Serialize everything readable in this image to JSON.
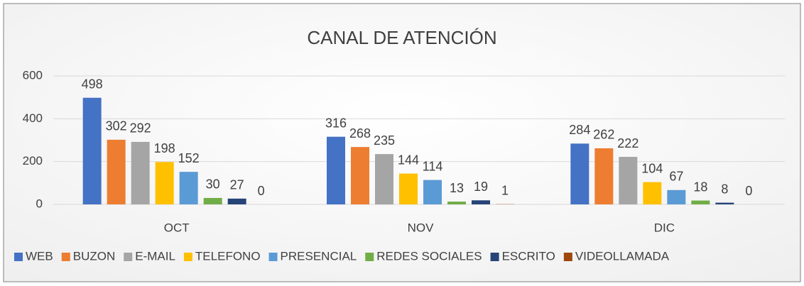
{
  "chart_data": {
    "type": "bar",
    "title": "CANAL DE ATENCIÓN",
    "categories": [
      "OCT",
      "NOV",
      "DIC"
    ],
    "series": [
      {
        "name": "WEB",
        "color": "#4472c4",
        "values": [
          498,
          316,
          284
        ]
      },
      {
        "name": "BUZON",
        "color": "#ed7d31",
        "values": [
          302,
          268,
          262
        ]
      },
      {
        "name": "E-MAIL",
        "color": "#a5a5a5",
        "values": [
          292,
          235,
          222
        ]
      },
      {
        "name": "TELEFONO",
        "color": "#ffc000",
        "values": [
          198,
          144,
          104
        ]
      },
      {
        "name": "PRESENCIAL",
        "color": "#5b9bd5",
        "values": [
          152,
          114,
          67
        ]
      },
      {
        "name": "REDES SOCIALES",
        "color": "#70ad47",
        "values": [
          30,
          13,
          18
        ]
      },
      {
        "name": "ESCRITO",
        "color": "#264478",
        "values": [
          27,
          19,
          8
        ]
      },
      {
        "name": "VIDEOLLAMADA",
        "color": "#9e480e",
        "values": [
          0,
          1,
          0
        ]
      }
    ],
    "ylim": [
      0,
      600
    ],
    "yticks": [
      0,
      200,
      400,
      600
    ],
    "grid": true,
    "legend": "bottom"
  }
}
